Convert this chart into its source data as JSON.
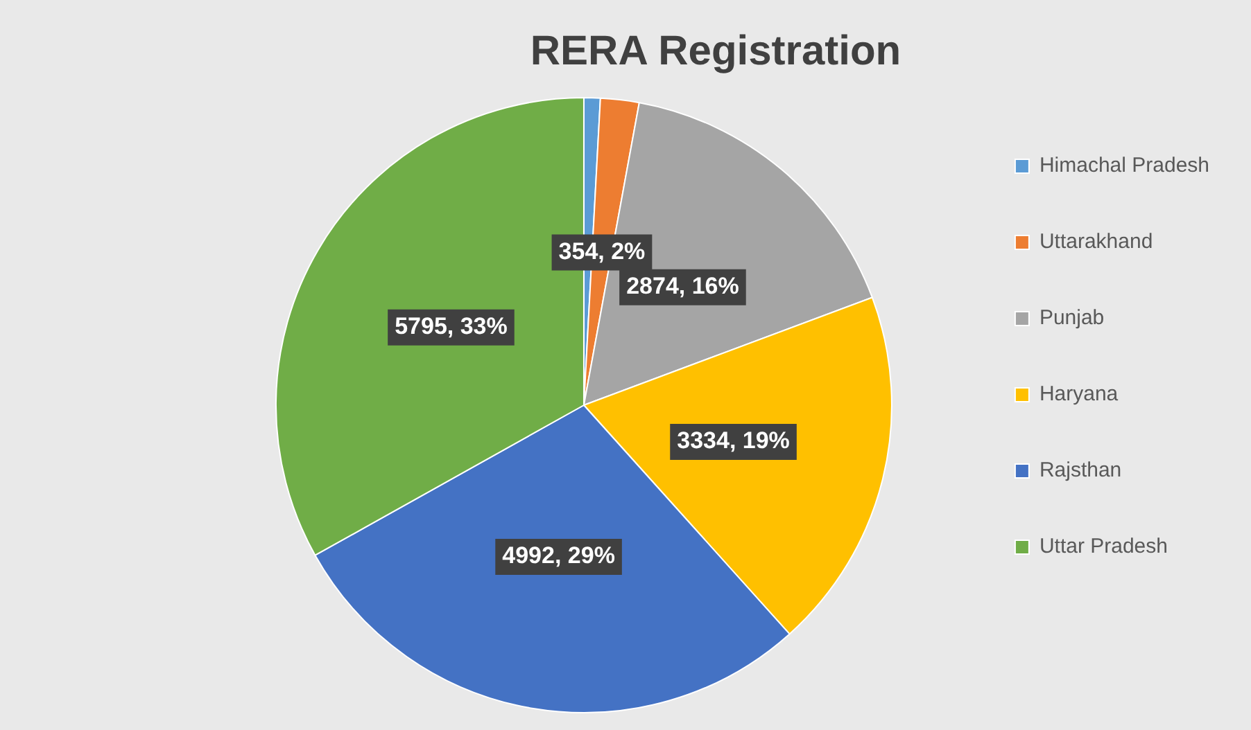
{
  "chart_data": {
    "type": "pie",
    "title": "RERA Registration",
    "categories": [
      "Himachal Pradesh",
      "Uttarakhand",
      "Punjab",
      "Haryana",
      "Rajsthan",
      "Uttar Pradesh"
    ],
    "values": [
      150,
      354,
      2874,
      3334,
      4992,
      5795
    ],
    "colors": [
      "#5b9bd5",
      "#ed7d31",
      "#a5a5a5",
      "#ffc000",
      "#4472c4",
      "#70ad47"
    ],
    "value_labels": [
      null,
      "354, 2%",
      "2874, 16%",
      "3334, 19%",
      "4992, 29%",
      "5795, 33%"
    ],
    "legend": "right"
  }
}
